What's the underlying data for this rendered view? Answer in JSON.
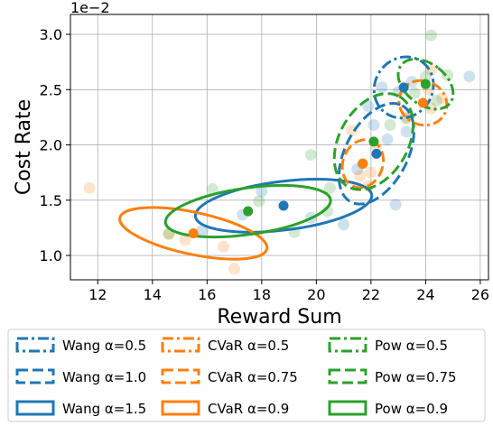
{
  "chart_data": {
    "type": "scatter",
    "title": "",
    "xlabel": "Reward Sum",
    "ylabel": "Cost Rate",
    "y_offset_label": "1e−2",
    "xlim": [
      11,
      26.3
    ],
    "ylim": [
      0.0078,
      0.0318
    ],
    "xticks": [
      12,
      14,
      16,
      18,
      20,
      22,
      24,
      26
    ],
    "xtick_labels": [
      "12",
      "14",
      "16",
      "18",
      "20",
      "22",
      "24",
      "26"
    ],
    "yticks": [
      0.01,
      0.015,
      0.02,
      0.025,
      0.03
    ],
    "ytick_labels": [
      "1.0",
      "1.5",
      "2.0",
      "2.5",
      "3.0"
    ],
    "grid": true,
    "legend_placement": "below",
    "legend": [
      {
        "label": "Wang α=0.5",
        "color": "#1f77b4",
        "dash": "dashdot"
      },
      {
        "label": "CVaR α=0.5",
        "color": "#ff7f0e",
        "dash": "dashdot"
      },
      {
        "label": "Pow α=0.5",
        "color": "#2ca02c",
        "dash": "dashdot"
      },
      {
        "label": "Wang α=1.0",
        "color": "#1f77b4",
        "dash": "dashed"
      },
      {
        "label": "CVaR α=0.75",
        "color": "#ff7f0e",
        "dash": "dashed"
      },
      {
        "label": "Pow α=0.75",
        "color": "#2ca02c",
        "dash": "dashed"
      },
      {
        "label": "Wang α=1.5",
        "color": "#1f77b4",
        "dash": "solid"
      },
      {
        "label": "CVaR α=0.9",
        "color": "#ff7f0e",
        "dash": "solid"
      },
      {
        "label": "Pow α=0.9",
        "color": "#2ca02c",
        "dash": "solid"
      }
    ],
    "series": [
      {
        "family": "Wang",
        "alpha": 0.5,
        "color": "#1f77b4",
        "dash": "dashdot",
        "mean": [
          23.2,
          0.0252
        ],
        "ellipse": {
          "rx": 1.15,
          "ry": 0.0026,
          "angle": 55
        },
        "points": [
          [
            22.4,
            0.0252
          ],
          [
            25.6,
            0.0262
          ],
          [
            23.0,
            0.0248
          ],
          [
            21.9,
            0.0235
          ],
          [
            23.5,
            0.0257
          ]
        ]
      },
      {
        "family": "Wang",
        "alpha": 1.0,
        "color": "#1f77b4",
        "dash": "dashed",
        "mean": [
          22.2,
          0.0192
        ],
        "ellipse": {
          "rx": 2.0,
          "ry": 0.0028,
          "angle": 62
        },
        "points": [
          [
            22.9,
            0.0146
          ],
          [
            22.1,
            0.0218
          ],
          [
            22.6,
            0.0205
          ],
          [
            23.3,
            0.0212
          ],
          [
            21.5,
            0.0178
          ]
        ]
      },
      {
        "family": "Wang",
        "alpha": 1.5,
        "color": "#1f77b4",
        "dash": "solid",
        "mean": [
          18.8,
          0.0145
        ],
        "ellipse": {
          "rx": 3.25,
          "ry": 0.0022,
          "angle": 7
        },
        "points": [
          [
            17.3,
            0.0137
          ],
          [
            21.0,
            0.0128
          ],
          [
            15.8,
            0.0122
          ],
          [
            19.8,
            0.0134
          ],
          [
            18.0,
            0.0158
          ]
        ]
      },
      {
        "family": "CVaR",
        "alpha": 0.5,
        "color": "#ff7f0e",
        "dash": "dashdot",
        "mean": [
          23.9,
          0.0238
        ],
        "ellipse": {
          "rx": 0.8,
          "ry": 0.0022,
          "angle": 65
        },
        "points": [
          [
            24.2,
            0.0268
          ],
          [
            24.6,
            0.0242
          ],
          [
            23.3,
            0.0225
          ],
          [
            24.2,
            0.0233
          ],
          [
            24.1,
            0.025
          ]
        ]
      },
      {
        "family": "CVaR",
        "alpha": 0.75,
        "color": "#ff7f0e",
        "dash": "dashed",
        "mean": [
          21.7,
          0.0183
        ],
        "ellipse": {
          "rx": 0.9,
          "ry": 0.0018,
          "angle": 70
        },
        "points": [
          [
            21.3,
            0.0213
          ],
          [
            22.2,
            0.0199
          ],
          [
            21.9,
            0.0163
          ],
          [
            22.0,
            0.0175
          ],
          [
            21.6,
            0.0172
          ]
        ]
      },
      {
        "family": "CVaR",
        "alpha": 0.9,
        "color": "#ff7f0e",
        "dash": "solid",
        "mean": [
          15.5,
          0.012
        ],
        "ellipse": {
          "rx": 2.75,
          "ry": 0.0019,
          "angle": -12
        },
        "points": [
          [
            11.7,
            0.0161
          ],
          [
            16.6,
            0.0108
          ],
          [
            17.0,
            0.0088
          ],
          [
            15.2,
            0.0114
          ],
          [
            14.6,
            0.0119
          ]
        ]
      },
      {
        "family": "Pow",
        "alpha": 0.5,
        "color": "#2ca02c",
        "dash": "dashdot",
        "mean": [
          24.0,
          0.0255
        ],
        "ellipse": {
          "rx": 0.75,
          "ry": 0.0028,
          "angle": 52
        },
        "points": [
          [
            24.2,
            0.0299
          ],
          [
            24.8,
            0.0263
          ],
          [
            23.6,
            0.0247
          ],
          [
            24.4,
            0.024
          ],
          [
            24.0,
            0.0262
          ]
        ]
      },
      {
        "family": "Pow",
        "alpha": 0.75,
        "color": "#2ca02c",
        "dash": "dashed",
        "mean": [
          22.1,
          0.0203
        ],
        "ellipse": {
          "rx": 1.9,
          "ry": 0.0031,
          "angle": 60
        },
        "points": [
          [
            23.3,
            0.0224
          ],
          [
            19.8,
            0.0191
          ],
          [
            20.5,
            0.0161
          ],
          [
            22.7,
            0.0218
          ],
          [
            21.7,
            0.0183
          ]
        ]
      },
      {
        "family": "Pow",
        "alpha": 0.9,
        "color": "#2ca02c",
        "dash": "solid",
        "mean": [
          17.5,
          0.014
        ],
        "ellipse": {
          "rx": 3.05,
          "ry": 0.0021,
          "angle": 8
        },
        "points": [
          [
            16.2,
            0.016
          ],
          [
            19.2,
            0.0121
          ],
          [
            14.6,
            0.012
          ],
          [
            17.9,
            0.0149
          ],
          [
            20.4,
            0.014
          ]
        ]
      }
    ]
  }
}
